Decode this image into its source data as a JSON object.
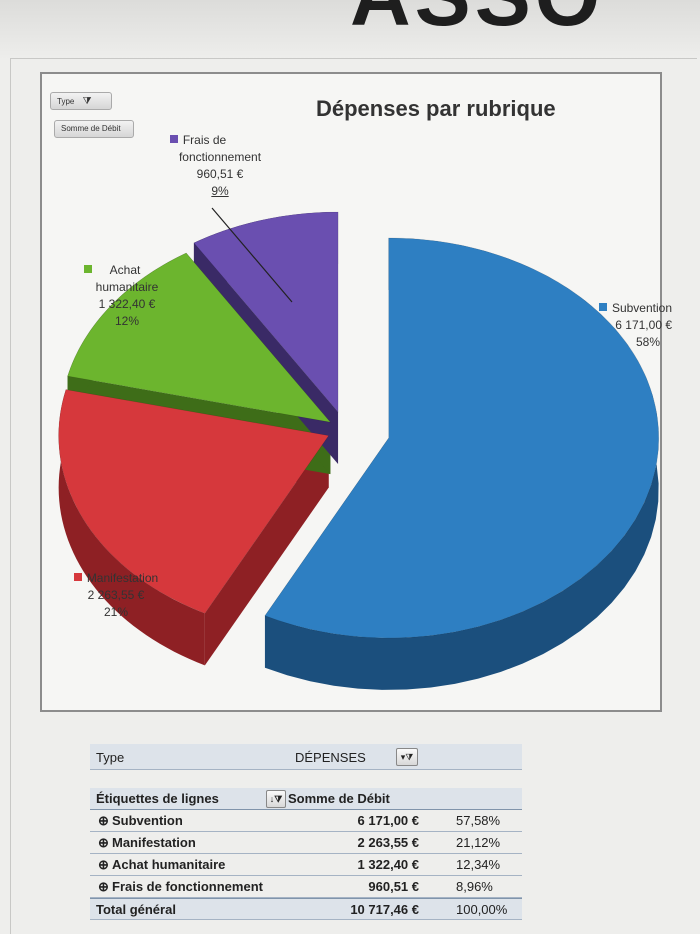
{
  "chart_data": {
    "type": "pie",
    "title": "Dépenses par rubrique",
    "series": [
      {
        "name": "Subvention",
        "value": 6171.0,
        "value_label": "6 171,00 €",
        "percent_label": "58%",
        "color": "#2e7fc2",
        "side_color": "#1b4f7d"
      },
      {
        "name": "Manifestation",
        "value": 2263.55,
        "value_label": "2 263,55 €",
        "percent_label": "21%",
        "color": "#d6383c",
        "side_color": "#8e2024"
      },
      {
        "name": "Achat humanitaire",
        "value": 1322.4,
        "value_label": "1 322,40 €",
        "percent_label": "12%",
        "color": "#6cb52e",
        "side_color": "#3e6d18"
      },
      {
        "name": "Frais de fonctionnement",
        "value": 960.51,
        "value_label": "960,51 €",
        "percent_label": "9%",
        "color": "#6a4fb0",
        "side_color": "#3a2a66"
      }
    ]
  },
  "chart_labels": {
    "frais_l1": "Frais de",
    "frais_l2": "fonctionnement",
    "achat_l1": "Achat",
    "achat_l2": "humanitaire"
  },
  "controls": {
    "type_button": "Type",
    "sum_button": "Somme de Débit"
  },
  "pivot": {
    "filter_label": "Type",
    "filter_value": "DÉPENSES",
    "col_labels": "Étiquettes de lignes",
    "col_sum": "Somme de Débit",
    "rows": [
      {
        "label": "Subvention",
        "value": "6 171,00 €",
        "percent": "57,58%"
      },
      {
        "label": "Manifestation",
        "value": "2 263,55 €",
        "percent": "21,12%"
      },
      {
        "label": "Achat humanitaire",
        "value": "1 322,40 €",
        "percent": "12,34%"
      },
      {
        "label": "Frais de fonctionnement",
        "value": "960,51 €",
        "percent": "8,96%"
      }
    ],
    "total_label": "Total général",
    "total_value": "10 717,46 €",
    "total_percent": "100,00%"
  },
  "header": {
    "word": "ASSO"
  }
}
